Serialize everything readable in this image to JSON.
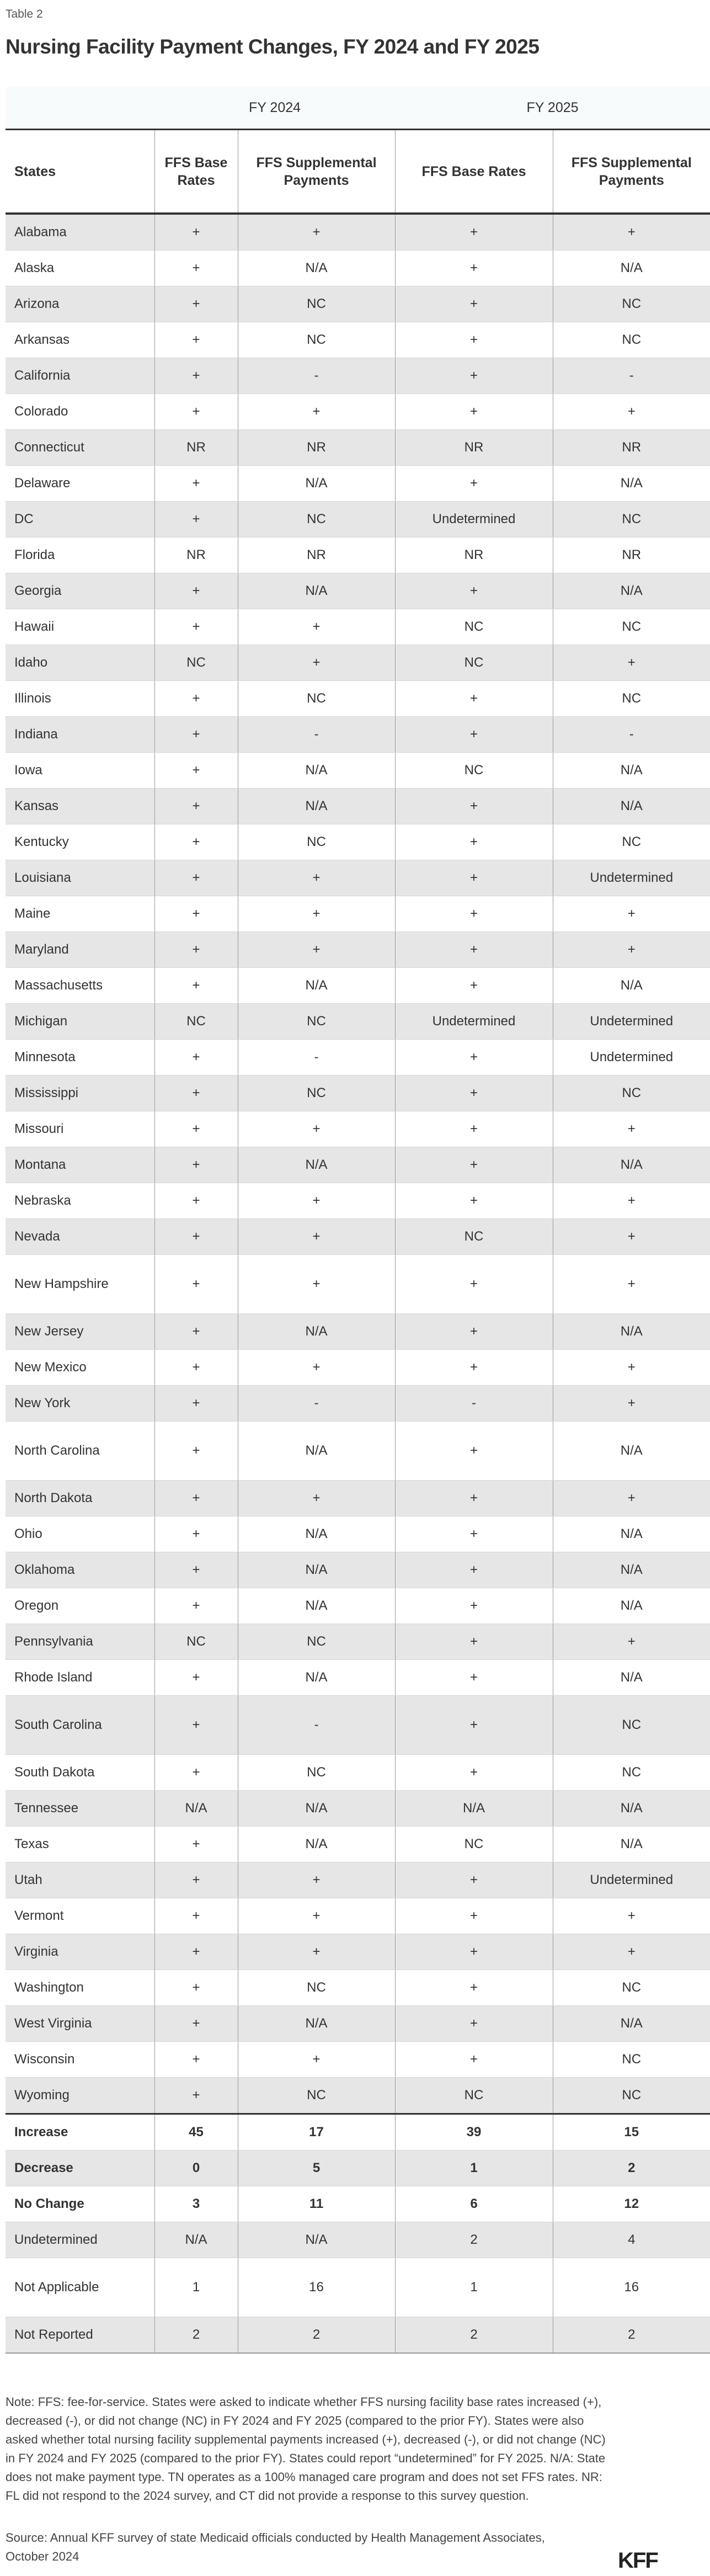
{
  "label": "Table 2",
  "title": "Nursing Facility Payment Changes, FY 2024 and FY 2025",
  "fy_headers": [
    "FY 2024",
    "FY 2025"
  ],
  "columns": [
    "States",
    "FFS Base Rates",
    "FFS Supplemental Payments",
    "FFS Base Rates",
    "FFS Supplemental Payments"
  ],
  "rows": [
    [
      "Alabama",
      "+",
      "+",
      "+",
      "+"
    ],
    [
      "Alaska",
      "+",
      "N/A",
      "+",
      "N/A"
    ],
    [
      "Arizona",
      "+",
      "NC",
      "+",
      "NC"
    ],
    [
      "Arkansas",
      "+",
      "NC",
      "+",
      "NC"
    ],
    [
      "California",
      "+",
      "-",
      "+",
      "-"
    ],
    [
      "Colorado",
      "+",
      "+",
      "+",
      "+"
    ],
    [
      "Connecticut",
      "NR",
      "NR",
      "NR",
      "NR"
    ],
    [
      "Delaware",
      "+",
      "N/A",
      "+",
      "N/A"
    ],
    [
      "DC",
      "+",
      "NC",
      "Undetermined",
      "NC"
    ],
    [
      "Florida",
      "NR",
      "NR",
      "NR",
      "NR"
    ],
    [
      "Georgia",
      "+",
      "N/A",
      "+",
      "N/A"
    ],
    [
      "Hawaii",
      "+",
      "+",
      "NC",
      "NC"
    ],
    [
      "Idaho",
      "NC",
      "+",
      "NC",
      "+"
    ],
    [
      "Illinois",
      "+",
      "NC",
      "+",
      "NC"
    ],
    [
      "Indiana",
      "+",
      "-",
      "+",
      "-"
    ],
    [
      "Iowa",
      "+",
      "N/A",
      "NC",
      "N/A"
    ],
    [
      "Kansas",
      "+",
      "N/A",
      "+",
      "N/A"
    ],
    [
      "Kentucky",
      "+",
      "NC",
      "+",
      "NC"
    ],
    [
      "Louisiana",
      "+",
      "+",
      "+",
      "Undetermined"
    ],
    [
      "Maine",
      "+",
      "+",
      "+",
      "+"
    ],
    [
      "Maryland",
      "+",
      "+",
      "+",
      "+"
    ],
    [
      "Massachusetts",
      "+",
      "N/A",
      "+",
      "N/A"
    ],
    [
      "Michigan",
      "NC",
      "NC",
      "Undetermined",
      "Undetermined"
    ],
    [
      "Minnesota",
      "+",
      "-",
      "+",
      "Undetermined"
    ],
    [
      "Mississippi",
      "+",
      "NC",
      "+",
      "NC"
    ],
    [
      "Missouri",
      "+",
      "+",
      "+",
      "+"
    ],
    [
      "Montana",
      "+",
      "N/A",
      "+",
      "N/A"
    ],
    [
      "Nebraska",
      "+",
      "+",
      "+",
      "+"
    ],
    [
      "Nevada",
      "+",
      "+",
      "NC",
      "+"
    ],
    [
      "New Hampshire",
      "+",
      "+",
      "+",
      "+"
    ],
    [
      "New Jersey",
      "+",
      "N/A",
      "+",
      "N/A"
    ],
    [
      "New Mexico",
      "+",
      "+",
      "+",
      "+"
    ],
    [
      "New York",
      "+",
      "-",
      "-",
      "+"
    ],
    [
      "North Carolina",
      "+",
      "N/A",
      "+",
      "N/A"
    ],
    [
      "North Dakota",
      "+",
      "+",
      "+",
      "+"
    ],
    [
      "Ohio",
      "+",
      "N/A",
      "+",
      "N/A"
    ],
    [
      "Oklahoma",
      "+",
      "N/A",
      "+",
      "N/A"
    ],
    [
      "Oregon",
      "+",
      "N/A",
      "+",
      "N/A"
    ],
    [
      "Pennsylvania",
      "NC",
      "NC",
      "+",
      "+"
    ],
    [
      "Rhode Island",
      "+",
      "N/A",
      "+",
      "N/A"
    ],
    [
      "South Carolina",
      "+",
      "-",
      "+",
      "NC"
    ],
    [
      "South Dakota",
      "+",
      "NC",
      "+",
      "NC"
    ],
    [
      "Tennessee",
      "N/A",
      "N/A",
      "N/A",
      "N/A"
    ],
    [
      "Texas",
      "+",
      "N/A",
      "NC",
      "N/A"
    ],
    [
      "Utah",
      "+",
      "+",
      "+",
      "Undetermined"
    ],
    [
      "Vermont",
      "+",
      "+",
      "+",
      "+"
    ],
    [
      "Virginia",
      "+",
      "+",
      "+",
      "+"
    ],
    [
      "Washington",
      "+",
      "NC",
      "+",
      "NC"
    ],
    [
      "West Virginia",
      "+",
      "N/A",
      "+",
      "N/A"
    ],
    [
      "Wisconsin",
      "+",
      "+",
      "+",
      "NC"
    ],
    [
      "Wyoming",
      "+",
      "NC",
      "NC",
      "NC"
    ]
  ],
  "summary": [
    [
      "Increase",
      "45",
      "17",
      "39",
      "15"
    ],
    [
      "Decrease",
      "0",
      "5",
      "1",
      "2"
    ],
    [
      "No Change",
      "3",
      "11",
      "6",
      "12"
    ],
    [
      "Undetermined",
      "N/A",
      "N/A",
      "2",
      "4"
    ],
    [
      "Not Applicable",
      "1",
      "16",
      "1",
      "16"
    ],
    [
      "Not Reported",
      "2",
      "2",
      "2",
      "2"
    ]
  ],
  "note": "Note: FFS: fee-for-service. States were asked to indicate whether FFS nursing facility base rates increased (+), decreased (-), or did not change (NC) in FY 2024 and FY 2025 (compared to the prior FY). States were also asked whether total nursing facility supplemental payments increased (+), decreased (-), or did not change (NC) in FY 2024 and FY 2025 (compared to the prior FY). States could report “undetermined” for FY 2025. N/A: State does not make payment type. TN operates as a 100% managed care program and does not set FFS rates. NR: FL did not respond to the 2024 survey, and CT did not provide a response to this survey question.",
  "source": "Source: Annual KFF survey of state Medicaid officials conducted by Health Management Associates, October 2024",
  "logo": "KFF"
}
